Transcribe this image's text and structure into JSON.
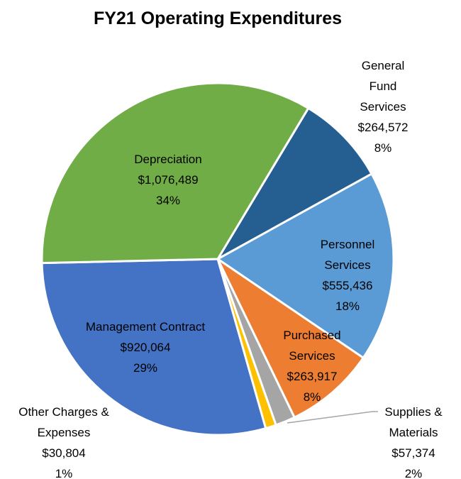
{
  "chart_data": {
    "type": "pie",
    "title": "FY21 Operating Expenditures",
    "categories": [
      "General Fund Services",
      "Personnel Services",
      "Purchased Services",
      "Supplies & Materials",
      "Other Charges & Expenses",
      "Management Contract",
      "Depreciation"
    ],
    "values": [
      264572,
      555436,
      263917,
      57374,
      30804,
      920064,
      1076489
    ],
    "value_labels": [
      "$264,572",
      "$555,436",
      "$263,917",
      "$57,374",
      "$30,804",
      "$920,064",
      "$1,076,489"
    ],
    "percent_labels": [
      "8%",
      "18%",
      "8%",
      "2%",
      "1%",
      "29%",
      "34%"
    ],
    "colors": [
      "#255e91",
      "#5b9bd5",
      "#ed7d31",
      "#a5a5a5",
      "#ffc000",
      "#4472c4",
      "#70ad47"
    ]
  }
}
